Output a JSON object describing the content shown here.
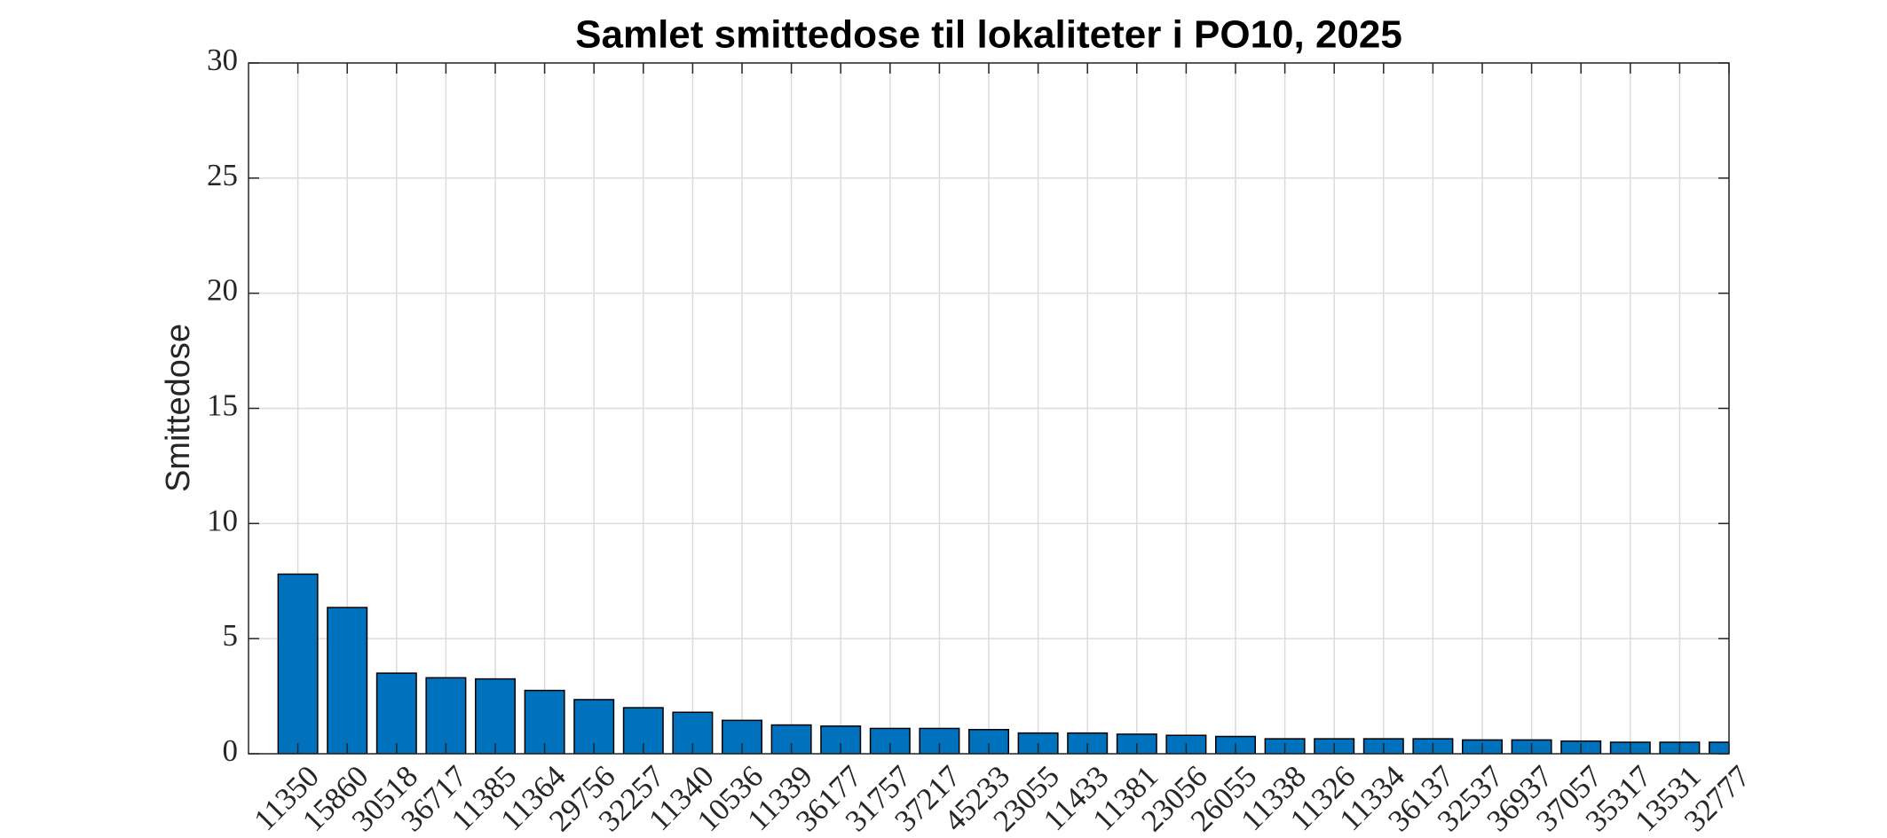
{
  "chart_data": {
    "type": "bar",
    "title": "Samlet smittedose til lokaliteter i PO10, 2025",
    "y_label": "Smittedose",
    "categories": [
      "11350",
      "15860",
      "30518",
      "36717",
      "11385",
      "11364",
      "29756",
      "32257",
      "11340",
      "10536",
      "11339",
      "36177",
      "31757",
      "37217",
      "45233",
      "23055",
      "11433",
      "11381",
      "23056",
      "26055",
      "11338",
      "11326",
      "11334",
      "36137",
      "32537",
      "36937",
      "37057",
      "35317",
      "13531",
      "32777"
    ],
    "values": [
      7.8,
      6.35,
      3.5,
      3.3,
      3.25,
      2.75,
      2.35,
      2.0,
      1.8,
      1.45,
      1.25,
      1.2,
      1.1,
      1.1,
      1.05,
      0.9,
      0.9,
      0.85,
      0.8,
      0.75,
      0.65,
      0.65,
      0.65,
      0.65,
      0.6,
      0.6,
      0.55,
      0.5,
      0.5,
      0.5
    ],
    "color": "#0072bd",
    "ylim": [
      0,
      30
    ],
    "yticks": [
      0,
      5,
      10,
      15,
      20,
      25,
      30
    ],
    "grid": true
  }
}
